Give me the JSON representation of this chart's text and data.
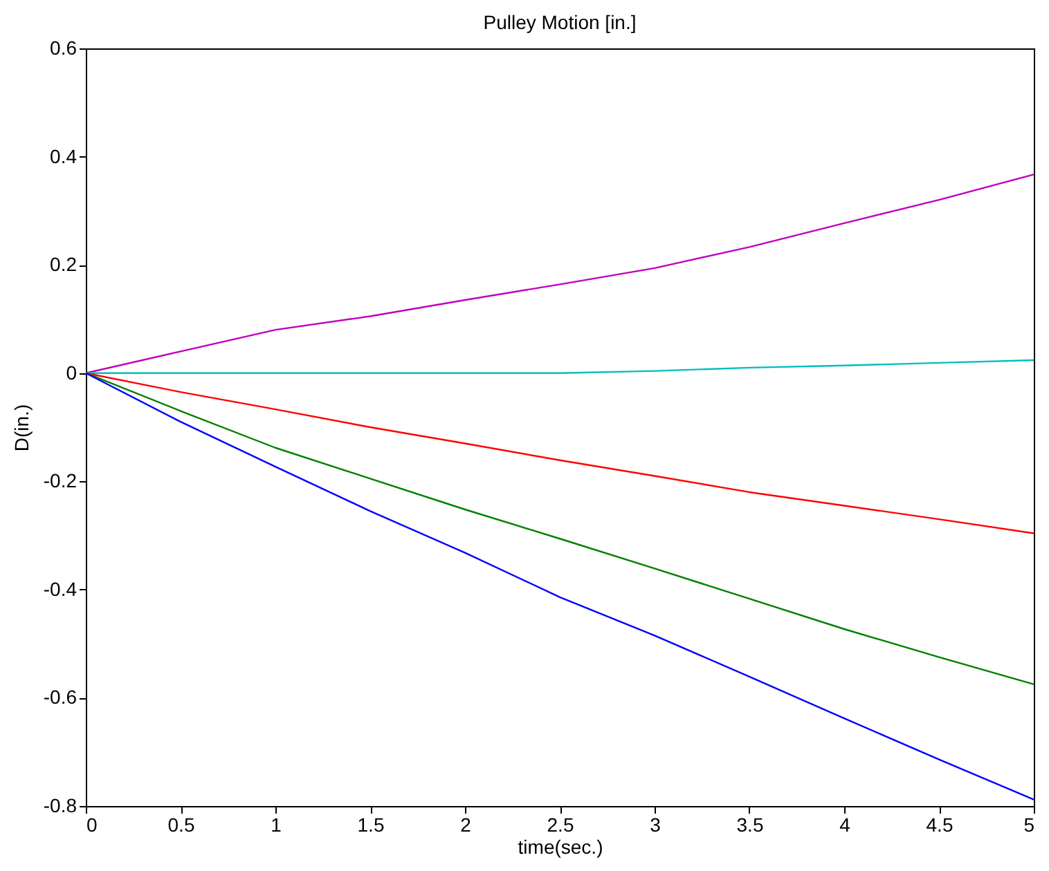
{
  "chart_data": {
    "type": "line",
    "title": "Pulley Motion [in.]",
    "xlabel": "time(sec.)",
    "ylabel": "D(in.)",
    "x": [
      0,
      0.5,
      1,
      1.5,
      2,
      2.5,
      3,
      3.5,
      4,
      4.5,
      5
    ],
    "series": [
      {
        "color": "#bf00bf",
        "values": [
          0,
          0.04,
          0.08,
          0.105,
          0.135,
          0.164,
          0.194,
          0.233,
          0.277,
          0.32,
          0.367
        ]
      },
      {
        "color": "#00bfbf",
        "values": [
          0,
          0,
          0,
          0,
          0,
          0,
          0.004,
          0.01,
          0.014,
          0.019,
          0.024
        ]
      },
      {
        "color": "#ff0000",
        "values": [
          0,
          -0.035,
          -0.067,
          -0.1,
          -0.13,
          -0.161,
          -0.19,
          -0.22,
          -0.245,
          -0.27,
          -0.296
        ]
      },
      {
        "color": "#008000",
        "values": [
          0,
          -0.07,
          -0.138,
          -0.195,
          -0.252,
          -0.306,
          -0.361,
          -0.417,
          -0.473,
          -0.525,
          -0.575
        ]
      },
      {
        "color": "#0000ff",
        "values": [
          0,
          -0.09,
          -0.173,
          -0.255,
          -0.332,
          -0.414,
          -0.485,
          -0.561,
          -0.638,
          -0.714,
          -0.788
        ]
      }
    ],
    "xlim": [
      0,
      5
    ],
    "xticks": [
      0,
      0.5,
      1,
      1.5,
      2,
      2.5,
      3,
      3.5,
      4,
      4.5,
      5
    ],
    "ylim": [
      -0.8,
      0.6
    ],
    "yticks": [
      -0.8,
      -0.6,
      -0.4,
      -0.2,
      0,
      0.2,
      0.4,
      0.6
    ],
    "grid": false,
    "legend": false,
    "marker": "none",
    "line_style": "solid"
  }
}
